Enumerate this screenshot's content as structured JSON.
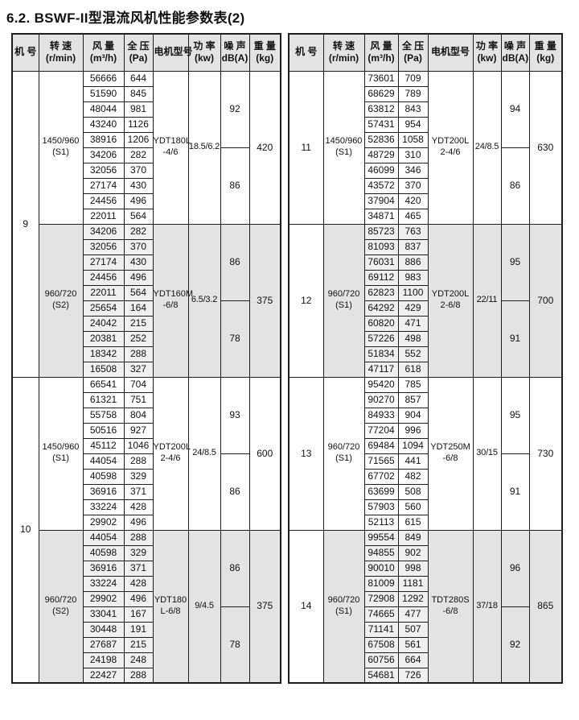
{
  "title": "6.2. BSWF-II型混流风机性能参数表(2)",
  "colors": {
    "border": "#1d1d1b",
    "header_bg": "#e3e3e1",
    "shaded_band": "#e3e3e1",
    "shaded_cell": "#efefed"
  },
  "header": {
    "machine": "机 号",
    "speed_label": "转 速",
    "speed_unit": "(r/min)",
    "volume_label": "风 量",
    "volume_unit": "(m³/h)",
    "pressure_label": "全 压",
    "pressure_unit": "(Pa)",
    "motor_label": "电机型号",
    "power_label": "功 率",
    "power_unit": "(kw)",
    "noise_label": "噪 声",
    "noise_unit": "dB(A)",
    "weight_label": "重 量",
    "weight_unit": "(kg)"
  },
  "tables": [
    {
      "machines": [
        {
          "no": "9",
          "sections": [
            {
              "shaded": false,
              "speed": "1450/960",
              "speed_note": "(S1)",
              "rows": [
                [
                  "56666",
                  "644"
                ],
                [
                  "51590",
                  "845"
                ],
                [
                  "48044",
                  "981"
                ],
                [
                  "43240",
                  "1126"
                ],
                [
                  "38916",
                  "1206"
                ],
                [
                  "34206",
                  "282"
                ],
                [
                  "32056",
                  "370"
                ],
                [
                  "27174",
                  "430"
                ],
                [
                  "24456",
                  "496"
                ],
                [
                  "22011",
                  "564"
                ]
              ],
              "motor": "YDT180L",
              "motor_note": "-4/6",
              "power": "18.5/6.2",
              "noise_high": "92",
              "noise_low": "86",
              "weight": "420"
            },
            {
              "shaded": true,
              "speed": "960/720",
              "speed_note": "(S2)",
              "rows": [
                [
                  "34206",
                  "282"
                ],
                [
                  "32056",
                  "370"
                ],
                [
                  "27174",
                  "430"
                ],
                [
                  "24456",
                  "496"
                ],
                [
                  "22011",
                  "564"
                ],
                [
                  "25654",
                  "164"
                ],
                [
                  "24042",
                  "215"
                ],
                [
                  "20381",
                  "252"
                ],
                [
                  "18342",
                  "288"
                ],
                [
                  "16508",
                  "327"
                ]
              ],
              "motor": "YDT160M",
              "motor_note": "-6/8",
              "power": "6.5/3.2",
              "noise_high": "86",
              "noise_low": "78",
              "weight": "375"
            }
          ]
        },
        {
          "no": "10",
          "sections": [
            {
              "shaded": false,
              "speed": "1450/960",
              "speed_note": "(S1)",
              "rows": [
                [
                  "66541",
                  "704"
                ],
                [
                  "61321",
                  "751"
                ],
                [
                  "55758",
                  "804"
                ],
                [
                  "50516",
                  "927"
                ],
                [
                  "45112",
                  "1046"
                ],
                [
                  "44054",
                  "288"
                ],
                [
                  "40598",
                  "329"
                ],
                [
                  "36916",
                  "371"
                ],
                [
                  "33224",
                  "428"
                ],
                [
                  "29902",
                  "496"
                ]
              ],
              "motor": "YDT200L",
              "motor_note": "2-4/6",
              "power": "24/8.5",
              "noise_high": "93",
              "noise_low": "86",
              "weight": "600"
            },
            {
              "shaded": true,
              "speed": "960/720",
              "speed_note": "(S2)",
              "rows": [
                [
                  "44054",
                  "288"
                ],
                [
                  "40598",
                  "329"
                ],
                [
                  "36916",
                  "371"
                ],
                [
                  "33224",
                  "428"
                ],
                [
                  "29902",
                  "496"
                ],
                [
                  "33041",
                  "167"
                ],
                [
                  "30448",
                  "191"
                ],
                [
                  "27687",
                  "215"
                ],
                [
                  "24198",
                  "248"
                ],
                [
                  "22427",
                  "288"
                ]
              ],
              "motor": "YDT180",
              "motor_note": "L-6/8",
              "power": "9/4.5",
              "noise_high": "86",
              "noise_low": "78",
              "weight": "375"
            }
          ]
        }
      ]
    },
    {
      "machines": [
        {
          "no": "11",
          "sections": [
            {
              "shaded": false,
              "speed": "1450/960",
              "speed_note": "(S1)",
              "rows": [
                [
                  "73601",
                  "709"
                ],
                [
                  "68629",
                  "789"
                ],
                [
                  "63812",
                  "843"
                ],
                [
                  "57431",
                  "954"
                ],
                [
                  "52836",
                  "1058"
                ],
                [
                  "48729",
                  "310"
                ],
                [
                  "46099",
                  "346"
                ],
                [
                  "43572",
                  "370"
                ],
                [
                  "37904",
                  "420"
                ],
                [
                  "34871",
                  "465"
                ]
              ],
              "motor": "YDT200L",
              "motor_note": "2-4/6",
              "power": "24/8.5",
              "noise_high": "94",
              "noise_low": "86",
              "weight": "630"
            }
          ]
        },
        {
          "no": "12",
          "sections": [
            {
              "shaded": true,
              "speed": "960/720",
              "speed_note": "(S1)",
              "rows": [
                [
                  "85723",
                  "763"
                ],
                [
                  "81093",
                  "837"
                ],
                [
                  "76031",
                  "886"
                ],
                [
                  "69112",
                  "983"
                ],
                [
                  "62823",
                  "1100"
                ],
                [
                  "64292",
                  "429"
                ],
                [
                  "60820",
                  "471"
                ],
                [
                  "57226",
                  "498"
                ],
                [
                  "51834",
                  "552"
                ],
                [
                  "47117",
                  "618"
                ]
              ],
              "motor": "YDT200L",
              "motor_note": "2-6/8",
              "power": "22/11",
              "noise_high": "95",
              "noise_low": "91",
              "weight": "700"
            }
          ]
        },
        {
          "no": "13",
          "sections": [
            {
              "shaded": false,
              "speed": "960/720",
              "speed_note": "(S1)",
              "rows": [
                [
                  "95420",
                  "785"
                ],
                [
                  "90270",
                  "857"
                ],
                [
                  "84933",
                  "904"
                ],
                [
                  "77204",
                  "996"
                ],
                [
                  "69484",
                  "1094"
                ],
                [
                  "71565",
                  "441"
                ],
                [
                  "67702",
                  "482"
                ],
                [
                  "63699",
                  "508"
                ],
                [
                  "57903",
                  "560"
                ],
                [
                  "52113",
                  "615"
                ]
              ],
              "motor": "YDT250M",
              "motor_note": "-6/8",
              "power": "30/15",
              "noise_high": "95",
              "noise_low": "91",
              "weight": "730"
            }
          ]
        },
        {
          "no": "14",
          "sections": [
            {
              "shaded": true,
              "speed": "960/720",
              "speed_note": "(S1)",
              "rows": [
                [
                  "99554",
                  "849"
                ],
                [
                  "94855",
                  "902"
                ],
                [
                  "90010",
                  "998"
                ],
                [
                  "81009",
                  "1181"
                ],
                [
                  "72908",
                  "1292"
                ],
                [
                  "74665",
                  "477"
                ],
                [
                  "71141",
                  "507"
                ],
                [
                  "67508",
                  "561"
                ],
                [
                  "60756",
                  "664"
                ],
                [
                  "54681",
                  "726"
                ]
              ],
              "motor": "TDT280S",
              "motor_note": "-6/8",
              "power": "37/18",
              "noise_high": "96",
              "noise_low": "92",
              "weight": "865"
            }
          ]
        }
      ]
    }
  ]
}
